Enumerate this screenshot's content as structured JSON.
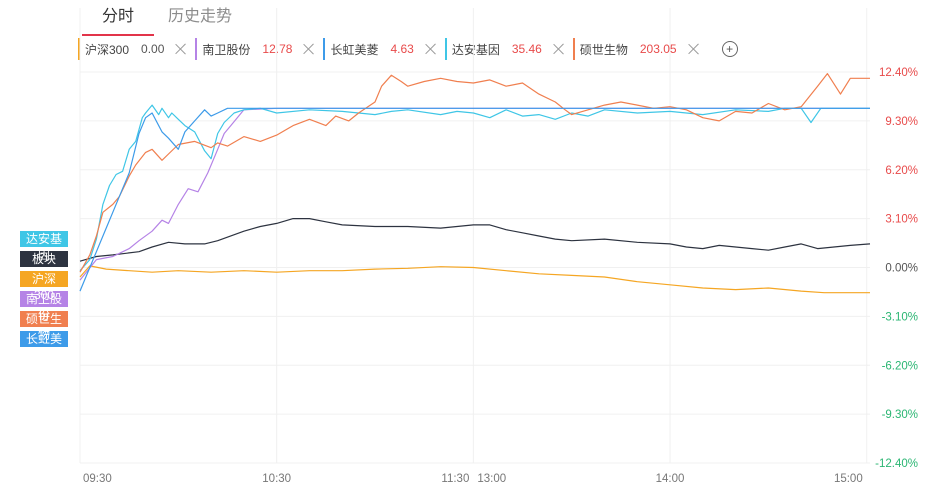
{
  "tabs": [
    {
      "label": "分时",
      "active": true
    },
    {
      "label": "历史走势",
      "active": false
    }
  ],
  "stocks": [
    {
      "name": "沪深300",
      "value": "0.00",
      "color": "#f5a623",
      "flat": true
    },
    {
      "name": "南卫股份",
      "value": "12.78",
      "color": "#b583e6",
      "flat": false
    },
    {
      "name": "长虹美菱",
      "value": "4.63",
      "color": "#3d9be9",
      "flat": false
    },
    {
      "name": "达安基因",
      "value": "35.46",
      "color": "#3fc6e6",
      "flat": false
    },
    {
      "name": "硕世生物",
      "value": "203.05",
      "color": "#f07f4f",
      "flat": false
    }
  ],
  "add_icon": "plus-circle-icon",
  "side_tags": [
    {
      "label": "达安基因",
      "color": "#3fc6e6"
    },
    {
      "label": "板块",
      "color": "#2d3340"
    },
    {
      "label": "沪深300",
      "color": "#f5a623"
    },
    {
      "label": "南卫股份",
      "color": "#b583e6"
    },
    {
      "label": "硕世生物",
      "color": "#f07f4f"
    },
    {
      "label": "长虹美菱",
      "color": "#3d9be9"
    }
  ],
  "chart_data": {
    "type": "line",
    "x_ticks": [
      "09:30",
      "10:30",
      "11:30",
      "13:00",
      "14:00",
      "15:00"
    ],
    "y_ticks": [
      "12.40%",
      "9.30%",
      "6.20%",
      "3.10%",
      "0.00%",
      "-3.10%",
      "-6.20%",
      "-9.30%",
      "-12.40%"
    ],
    "y_range": [
      -12.4,
      12.4
    ],
    "colors": {
      "up": "#e84a4a",
      "down": "#2bb673",
      "flat": "#555555"
    },
    "grid": true,
    "series": [
      {
        "name": "沪深300",
        "color": "#f5a623",
        "points": [
          [
            0,
            -0.6
          ],
          [
            3,
            0.1
          ],
          [
            8,
            -0.1
          ],
          [
            15,
            -0.2
          ],
          [
            22,
            -0.3
          ],
          [
            30,
            -0.2
          ],
          [
            40,
            -0.3
          ],
          [
            50,
            -0.2
          ],
          [
            60,
            -0.3
          ],
          [
            70,
            -0.2
          ],
          [
            80,
            -0.2
          ],
          [
            90,
            -0.1
          ],
          [
            100,
            -0.05
          ],
          [
            110,
            0.05
          ],
          [
            120,
            0.0
          ],
          [
            130,
            -0.2
          ],
          [
            140,
            -0.4
          ],
          [
            150,
            -0.5
          ],
          [
            160,
            -0.6
          ],
          [
            170,
            -0.9
          ],
          [
            180,
            -1.1
          ],
          [
            190,
            -1.3
          ],
          [
            200,
            -1.4
          ],
          [
            210,
            -1.3
          ],
          [
            220,
            -1.5
          ],
          [
            227,
            -1.6
          ],
          [
            235,
            -1.6
          ],
          [
            241,
            -1.6
          ]
        ]
      },
      {
        "name": "板块",
        "color": "#2d3340",
        "points": [
          [
            0,
            0.4
          ],
          [
            5,
            0.7
          ],
          [
            10,
            0.8
          ],
          [
            18,
            1.0
          ],
          [
            22,
            1.3
          ],
          [
            27,
            1.6
          ],
          [
            32,
            1.5
          ],
          [
            38,
            1.5
          ],
          [
            42,
            1.7
          ],
          [
            50,
            2.3
          ],
          [
            55,
            2.6
          ],
          [
            60,
            2.8
          ],
          [
            65,
            3.1
          ],
          [
            70,
            3.1
          ],
          [
            75,
            2.9
          ],
          [
            80,
            2.7
          ],
          [
            90,
            2.6
          ],
          [
            100,
            2.6
          ],
          [
            110,
            2.5
          ],
          [
            120,
            2.7
          ],
          [
            125,
            2.7
          ],
          [
            130,
            2.4
          ],
          [
            135,
            2.2
          ],
          [
            140,
            2.0
          ],
          [
            145,
            1.8
          ],
          [
            150,
            1.7
          ],
          [
            160,
            1.8
          ],
          [
            170,
            1.6
          ],
          [
            180,
            1.5
          ],
          [
            185,
            1.3
          ],
          [
            190,
            1.2
          ],
          [
            195,
            1.4
          ],
          [
            200,
            1.3
          ],
          [
            205,
            1.2
          ],
          [
            210,
            1.1
          ],
          [
            215,
            1.3
          ],
          [
            220,
            1.5
          ],
          [
            225,
            1.2
          ],
          [
            230,
            1.3
          ],
          [
            235,
            1.4
          ],
          [
            241,
            1.5
          ]
        ]
      },
      {
        "name": "南卫股份",
        "color": "#b583e6",
        "points": [
          [
            0,
            -0.8
          ],
          [
            5,
            0.5
          ],
          [
            10,
            0.7
          ],
          [
            15,
            1.2
          ],
          [
            18,
            1.7
          ],
          [
            22,
            2.3
          ],
          [
            25,
            3.0
          ],
          [
            27,
            2.8
          ],
          [
            30,
            4.0
          ],
          [
            33,
            5.0
          ],
          [
            36,
            4.8
          ],
          [
            39,
            6.0
          ],
          [
            42,
            7.5
          ],
          [
            44,
            8.5
          ],
          [
            46,
            9.0
          ],
          [
            48,
            9.5
          ],
          [
            50,
            10.0
          ],
          [
            60,
            10.1
          ],
          [
            90,
            10.1
          ],
          [
            120,
            10.1
          ],
          [
            150,
            10.1
          ],
          [
            180,
            10.1
          ],
          [
            210,
            10.1
          ],
          [
            241,
            10.1
          ]
        ]
      },
      {
        "name": "达安基因",
        "color": "#3fc6e6",
        "points": [
          [
            0,
            -0.2
          ],
          [
            3,
            0.5
          ],
          [
            5,
            1.8
          ],
          [
            7,
            4.0
          ],
          [
            9,
            5.2
          ],
          [
            11,
            5.9
          ],
          [
            13,
            6.1
          ],
          [
            15,
            7.5
          ],
          [
            17,
            8.0
          ],
          [
            19,
            9.5
          ],
          [
            20,
            9.8
          ],
          [
            22,
            10.3
          ],
          [
            24,
            9.7
          ],
          [
            25,
            10.1
          ],
          [
            27,
            9.5
          ],
          [
            28,
            9.8
          ],
          [
            30,
            9.4
          ],
          [
            32,
            9.0
          ],
          [
            35,
            8.6
          ],
          [
            38,
            7.4
          ],
          [
            40,
            6.9
          ],
          [
            42,
            8.5
          ],
          [
            44,
            9.2
          ],
          [
            47,
            9.8
          ],
          [
            50,
            10.0
          ],
          [
            55,
            10.1
          ],
          [
            60,
            9.8
          ],
          [
            70,
            10.0
          ],
          [
            80,
            9.9
          ],
          [
            90,
            9.7
          ],
          [
            95,
            9.9
          ],
          [
            100,
            10.0
          ],
          [
            110,
            9.7
          ],
          [
            115,
            9.9
          ],
          [
            120,
            9.8
          ],
          [
            125,
            9.5
          ],
          [
            130,
            10.0
          ],
          [
            135,
            9.6
          ],
          [
            140,
            9.7
          ],
          [
            145,
            9.4
          ],
          [
            150,
            9.8
          ],
          [
            155,
            9.6
          ],
          [
            160,
            10.0
          ],
          [
            170,
            9.8
          ],
          [
            180,
            9.9
          ],
          [
            190,
            9.7
          ],
          [
            200,
            10.0
          ],
          [
            210,
            9.9
          ],
          [
            215,
            10.1
          ],
          [
            220,
            10.1
          ],
          [
            223,
            9.2
          ],
          [
            226,
            10.1
          ],
          [
            241,
            10.1
          ]
        ]
      },
      {
        "name": "硕世生物",
        "color": "#f07f4f",
        "points": [
          [
            0,
            -0.3
          ],
          [
            3,
            0.8
          ],
          [
            5,
            2.0
          ],
          [
            7,
            3.5
          ],
          [
            10,
            4.0
          ],
          [
            12,
            4.5
          ],
          [
            15,
            5.8
          ],
          [
            17,
            6.5
          ],
          [
            20,
            7.3
          ],
          [
            22,
            7.5
          ],
          [
            25,
            6.8
          ],
          [
            27,
            7.2
          ],
          [
            30,
            7.8
          ],
          [
            35,
            8.0
          ],
          [
            40,
            7.6
          ],
          [
            42,
            7.9
          ],
          [
            45,
            7.7
          ],
          [
            50,
            8.3
          ],
          [
            55,
            8.0
          ],
          [
            60,
            8.4
          ],
          [
            65,
            9.0
          ],
          [
            70,
            9.4
          ],
          [
            75,
            9.0
          ],
          [
            78,
            9.6
          ],
          [
            82,
            9.3
          ],
          [
            85,
            9.8
          ],
          [
            90,
            10.5
          ],
          [
            92,
            11.5
          ],
          [
            95,
            12.2
          ],
          [
            98,
            11.8
          ],
          [
            100,
            11.5
          ],
          [
            105,
            11.8
          ],
          [
            110,
            12.0
          ],
          [
            115,
            11.8
          ],
          [
            120,
            11.7
          ],
          [
            125,
            11.9
          ],
          [
            130,
            11.5
          ],
          [
            135,
            11.7
          ],
          [
            140,
            11.0
          ],
          [
            145,
            10.5
          ],
          [
            148,
            10.0
          ],
          [
            150,
            9.7
          ],
          [
            155,
            10.0
          ],
          [
            160,
            10.3
          ],
          [
            165,
            10.5
          ],
          [
            170,
            10.3
          ],
          [
            175,
            10.1
          ],
          [
            180,
            10.2
          ],
          [
            185,
            10.0
          ],
          [
            190,
            9.5
          ],
          [
            195,
            9.3
          ],
          [
            200,
            9.9
          ],
          [
            205,
            9.8
          ],
          [
            210,
            10.4
          ],
          [
            215,
            10.0
          ],
          [
            220,
            10.2
          ],
          [
            225,
            11.5
          ],
          [
            228,
            12.3
          ],
          [
            232,
            11.0
          ],
          [
            235,
            12.0
          ],
          [
            241,
            12.0
          ]
        ]
      },
      {
        "name": "长虹美菱",
        "color": "#3d9be9",
        "points": [
          [
            0,
            -1.5
          ],
          [
            3,
            0.0
          ],
          [
            5,
            1.0
          ],
          [
            8,
            2.5
          ],
          [
            10,
            3.5
          ],
          [
            13,
            5.0
          ],
          [
            15,
            6.0
          ],
          [
            18,
            8.5
          ],
          [
            20,
            9.5
          ],
          [
            22,
            9.8
          ],
          [
            25,
            8.6
          ],
          [
            27,
            8.2
          ],
          [
            30,
            7.5
          ],
          [
            32,
            8.6
          ],
          [
            35,
            9.3
          ],
          [
            38,
            10.0
          ],
          [
            40,
            9.6
          ],
          [
            42,
            9.8
          ],
          [
            45,
            10.1
          ],
          [
            241,
            10.1
          ]
        ]
      }
    ]
  }
}
